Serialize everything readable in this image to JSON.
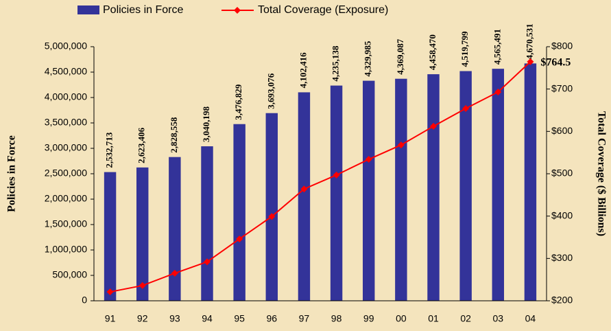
{
  "chart_data": {
    "type": "bar_line",
    "categories": [
      "91",
      "92",
      "93",
      "94",
      "95",
      "96",
      "97",
      "98",
      "99",
      "00",
      "01",
      "02",
      "03",
      "04"
    ],
    "series": [
      {
        "name": "Policies in Force",
        "color": "#333399",
        "type": "bar",
        "values": [
          2532713,
          2623406,
          2828558,
          3040198,
          3476829,
          3693076,
          4102416,
          4235138,
          4329985,
          4369087,
          4458470,
          4519799,
          4565491,
          4670531
        ],
        "value_labels": [
          "2,532,713",
          "2,623,406",
          "2,828,558",
          "3,040,198",
          "3,476,829",
          "3,693,076",
          "4,102,416",
          "4,235,138",
          "4,329,985",
          "4,369,087",
          "4,458,470",
          "4,519,799",
          "4,565,491",
          "4,670,531"
        ]
      },
      {
        "name": "Total Coverage (Exposure)",
        "color": "#ff0000",
        "type": "line",
        "axis": "y2",
        "values": [
          221,
          236,
          265,
          292,
          346,
          399,
          464,
          497,
          534,
          568,
          612,
          654,
          693,
          764.5
        ],
        "value_labels": [
          null,
          null,
          null,
          null,
          null,
          null,
          null,
          null,
          null,
          null,
          null,
          null,
          null,
          "$764.5"
        ]
      }
    ],
    "ylabel": "Policies in Force",
    "y2label": "Total Coverage ($ Billions)",
    "ylim": [
      0,
      5000000
    ],
    "yticks": [
      0,
      {
        "value": 500000,
        "label": "500,000"
      },
      {
        "value": 1000000,
        "label": "1,000,000"
      },
      {
        "value": 1500000,
        "label": "1,500,000"
      },
      {
        "value": 2000000,
        "label": "2,000,000"
      },
      {
        "value": 2500000,
        "label": "2,500,000"
      },
      {
        "value": 3000000,
        "label": "3,000,000"
      },
      {
        "value": 3500000,
        "label": "3,500,000"
      },
      {
        "value": 4000000,
        "label": "4,000,000"
      },
      {
        "value": 4500000,
        "label": "4,500,000"
      },
      {
        "value": 5000000,
        "label": "5,000,000"
      }
    ],
    "y2lim": [
      200,
      800
    ],
    "y2ticks": [
      {
        "value": 200,
        "label": "$200"
      },
      {
        "value": 300,
        "label": "$300"
      },
      {
        "value": 400,
        "label": "$400"
      },
      {
        "value": 500,
        "label": "$500"
      },
      {
        "value": 600,
        "label": "$600"
      },
      {
        "value": 700,
        "label": "$700"
      },
      {
        "value": 800,
        "label": "$800"
      }
    ],
    "grid": false,
    "legend": "top"
  }
}
